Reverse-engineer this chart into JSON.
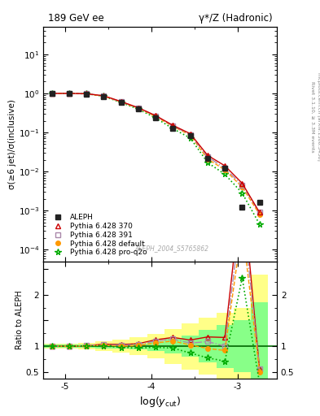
{
  "title_left": "189 GeV ee",
  "title_right": "γ*/Z (Hadronic)",
  "ylabel_main": "σ(≥6 jet)/σ(inclusive)",
  "ylabel_ratio": "Ratio to ALEPH",
  "xlabel": "log(y_{cut})",
  "watermark": "ALEPH_2004_S5765862",
  "right_label_top": "Rivet 3.1.10, ≥ 3.3M events",
  "right_label_bot": "mcplots.cern.ch [arXiv:1306.3436]",
  "xmin": -5.25,
  "xmax": -2.55,
  "aleph_x": [
    -5.15,
    -4.95,
    -4.75,
    -4.55,
    -4.35,
    -4.15,
    -3.95,
    -3.75,
    -3.55,
    -3.35,
    -3.15,
    -2.95,
    -2.75
  ],
  "aleph_y": [
    1.0,
    1.0,
    0.97,
    0.84,
    0.6,
    0.41,
    0.24,
    0.13,
    0.083,
    0.022,
    0.012,
    0.0012,
    0.0016
  ],
  "aleph_color": "#222222",
  "py370_x": [
    -5.15,
    -4.95,
    -4.75,
    -4.55,
    -4.35,
    -4.15,
    -3.95,
    -3.75,
    -3.55,
    -3.35,
    -3.15,
    -2.95,
    -2.75
  ],
  "py370_y": [
    1.0,
    1.0,
    0.98,
    0.87,
    0.62,
    0.43,
    0.27,
    0.152,
    0.093,
    0.026,
    0.014,
    0.005,
    0.0009
  ],
  "py370_color": "#cc0000",
  "py370_label": "Pythia 6.428 370",
  "py391_x": [
    -5.15,
    -4.95,
    -4.75,
    -4.55,
    -4.35,
    -4.15,
    -3.95,
    -3.75,
    -3.55,
    -3.35,
    -3.15,
    -2.95,
    -2.75
  ],
  "py391_y": [
    1.0,
    1.0,
    0.98,
    0.865,
    0.61,
    0.425,
    0.265,
    0.148,
    0.088,
    0.024,
    0.012,
    0.0045,
    0.0009
  ],
  "py391_color": "#aa88aa",
  "py391_label": "Pythia 6.428 391",
  "pydef_x": [
    -5.15,
    -4.95,
    -4.75,
    -4.55,
    -4.35,
    -4.15,
    -3.95,
    -3.75,
    -3.55,
    -3.35,
    -3.15,
    -2.95,
    -2.75
  ],
  "pydef_y": [
    1.0,
    1.0,
    0.975,
    0.855,
    0.6,
    0.415,
    0.255,
    0.143,
    0.085,
    0.021,
    0.011,
    0.004,
    0.0008
  ],
  "pydef_color": "#ff9900",
  "pydef_label": "Pythia 6.428 default",
  "pyq2o_x": [
    -5.15,
    -4.95,
    -4.75,
    -4.55,
    -4.35,
    -4.15,
    -3.95,
    -3.75,
    -3.55,
    -3.35,
    -3.15,
    -2.95,
    -2.75
  ],
  "pyq2o_y": [
    1.0,
    1.0,
    0.975,
    0.845,
    0.585,
    0.395,
    0.235,
    0.125,
    0.072,
    0.017,
    0.0085,
    0.0028,
    0.00045
  ],
  "pyq2o_color": "#00aa00",
  "pyq2o_label": "Pythia 6.428 pro-q2o",
  "ratio_py370": [
    1.0,
    1.0,
    1.01,
    1.04,
    1.033,
    1.049,
    1.125,
    1.17,
    1.12,
    1.18,
    1.17,
    4.17,
    0.56
  ],
  "ratio_py391": [
    1.0,
    1.0,
    1.01,
    1.03,
    1.017,
    1.037,
    1.1,
    1.138,
    1.06,
    1.09,
    1.0,
    3.75,
    0.56
  ],
  "ratio_pydef": [
    1.0,
    1.0,
    1.005,
    1.018,
    1.0,
    1.012,
    1.063,
    1.1,
    1.024,
    0.955,
    0.917,
    3.33,
    0.5
  ],
  "ratio_pyq2o": [
    1.0,
    1.0,
    1.005,
    1.006,
    0.975,
    0.963,
    0.979,
    0.962,
    0.867,
    0.773,
    0.708,
    2.33,
    0.28
  ],
  "band_edges": [
    -5.25,
    -5.05,
    -4.85,
    -4.65,
    -4.45,
    -4.25,
    -4.05,
    -3.85,
    -3.65,
    -3.45,
    -3.25,
    -3.05,
    -2.85,
    -2.65
  ],
  "band_yellow_lo": [
    0.95,
    0.95,
    0.93,
    0.9,
    0.87,
    0.82,
    0.76,
    0.66,
    0.55,
    0.45,
    0.35,
    0.25,
    0.1
  ],
  "band_yellow_hi": [
    1.05,
    1.05,
    1.07,
    1.1,
    1.13,
    1.18,
    1.24,
    1.34,
    1.45,
    1.55,
    1.65,
    1.75,
    2.4
  ],
  "band_green_lo": [
    0.97,
    0.97,
    0.97,
    0.96,
    0.95,
    0.945,
    0.91,
    0.86,
    0.8,
    0.68,
    0.58,
    0.5,
    0.3
  ],
  "band_green_hi": [
    1.03,
    1.03,
    1.03,
    1.04,
    1.05,
    1.055,
    1.09,
    1.14,
    1.2,
    1.32,
    1.42,
    1.5,
    1.85
  ]
}
